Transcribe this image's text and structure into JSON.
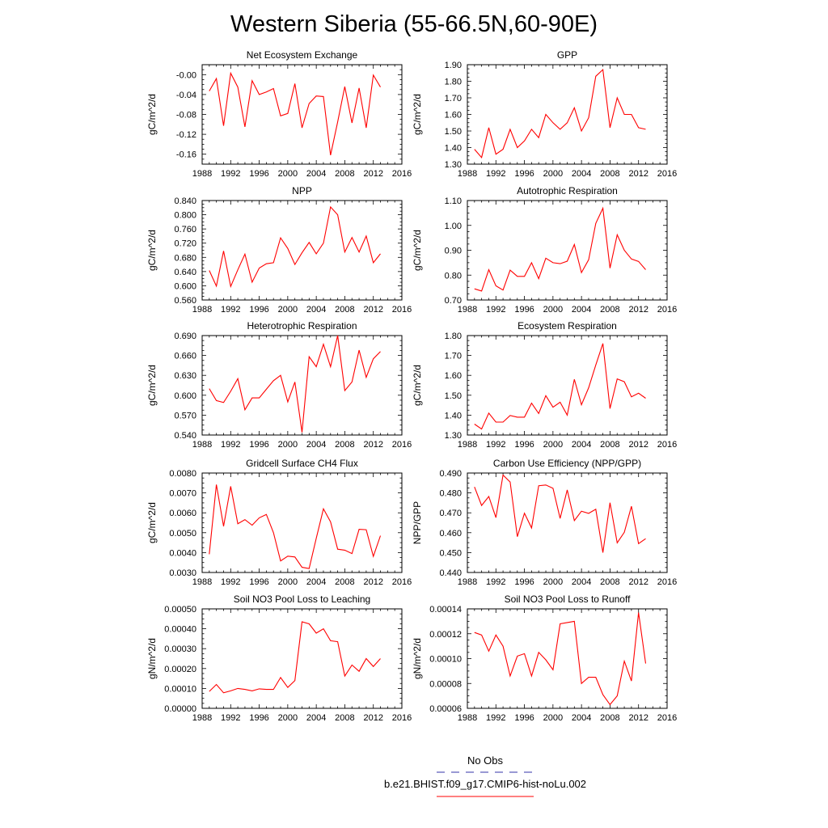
{
  "figure": {
    "title": "Western Siberia (55-66.5N,60-90E)"
  },
  "legend": {
    "obs_label": "No Obs",
    "obs_color": "#3333aa",
    "model_label": "b.e21.BHIST.f09_g17.CMIP6-hist-noLu.002",
    "model_color": "#ff0000"
  },
  "chart_data": [
    {
      "type": "line",
      "title": "Net Ecosystem Exchange",
      "ylabel": "gC/m^2/d",
      "xlim": [
        1988,
        2016
      ],
      "xticks": [
        "1988",
        "1992",
        "1996",
        "2000",
        "2004",
        "2008",
        "2012",
        "2016"
      ],
      "ylim": [
        -0.18,
        0.02
      ],
      "yticks": [
        "-0.00",
        "-0.04",
        "-0.08",
        "-0.12",
        "-0.16"
      ],
      "ytick_values": [
        0.0,
        -0.04,
        -0.08,
        -0.12,
        -0.16
      ],
      "series": [
        {
          "x": [
            1989,
            1990,
            1991,
            1992,
            1993,
            1994,
            1995,
            1996,
            1997,
            1998,
            1999,
            2000,
            2001,
            2002,
            2003,
            2004,
            2005,
            2006,
            2007,
            2008,
            2009,
            2010,
            2011,
            2012,
            2013
          ],
          "y": [
            -0.033,
            -0.008,
            -0.103,
            0.003,
            -0.025,
            -0.105,
            -0.012,
            -0.04,
            -0.035,
            -0.028,
            -0.083,
            -0.078,
            -0.018,
            -0.107,
            -0.058,
            -0.043,
            -0.044,
            -0.162,
            -0.095,
            -0.024,
            -0.097,
            -0.027,
            -0.107,
            -0.001,
            -0.025
          ]
        }
      ]
    },
    {
      "type": "line",
      "title": "GPP",
      "ylabel": "gC/m^2/d",
      "xlim": [
        1988,
        2016
      ],
      "xticks": [
        "1988",
        "1992",
        "1996",
        "2000",
        "2004",
        "2008",
        "2012",
        "2016"
      ],
      "ylim": [
        1.3,
        1.9
      ],
      "yticks": [
        "1.30",
        "1.40",
        "1.50",
        "1.60",
        "1.70",
        "1.80",
        "1.90"
      ],
      "ytick_values": [
        1.3,
        1.4,
        1.5,
        1.6,
        1.7,
        1.8,
        1.9
      ],
      "series": [
        {
          "x": [
            1989,
            1990,
            1991,
            1992,
            1993,
            1994,
            1995,
            1996,
            1997,
            1998,
            1999,
            2000,
            2001,
            2002,
            2003,
            2004,
            2005,
            2006,
            2007,
            2008,
            2009,
            2010,
            2011,
            2012,
            2013
          ],
          "y": [
            1.39,
            1.34,
            1.52,
            1.36,
            1.39,
            1.51,
            1.4,
            1.44,
            1.51,
            1.46,
            1.6,
            1.55,
            1.51,
            1.55,
            1.64,
            1.5,
            1.58,
            1.83,
            1.87,
            1.52,
            1.7,
            1.6,
            1.6,
            1.52,
            1.51
          ]
        }
      ]
    },
    {
      "type": "line",
      "title": "NPP",
      "ylabel": "gC/m^2/d",
      "xlim": [
        1988,
        2016
      ],
      "xticks": [
        "1988",
        "1992",
        "1996",
        "2000",
        "2004",
        "2008",
        "2012",
        "2016"
      ],
      "ylim": [
        0.56,
        0.84
      ],
      "yticks": [
        "0.560",
        "0.600",
        "0.640",
        "0.680",
        "0.720",
        "0.760",
        "0.800",
        "0.840"
      ],
      "ytick_values": [
        0.56,
        0.6,
        0.64,
        0.68,
        0.72,
        0.76,
        0.8,
        0.84
      ],
      "series": [
        {
          "x": [
            1989,
            1990,
            1991,
            1992,
            1993,
            1994,
            1995,
            1996,
            1997,
            1998,
            1999,
            2000,
            2001,
            2002,
            2003,
            2004,
            2005,
            2006,
            2007,
            2008,
            2009,
            2010,
            2011,
            2012,
            2013
          ],
          "y": [
            0.643,
            0.599,
            0.698,
            0.598,
            0.645,
            0.689,
            0.61,
            0.65,
            0.662,
            0.665,
            0.735,
            0.705,
            0.66,
            0.693,
            0.722,
            0.69,
            0.72,
            0.822,
            0.8,
            0.695,
            0.736,
            0.695,
            0.74,
            0.665,
            0.69
          ]
        }
      ]
    },
    {
      "type": "line",
      "title": "Autotrophic Respiration",
      "ylabel": "gC/m^2/d",
      "xlim": [
        1988,
        2016
      ],
      "xticks": [
        "1988",
        "1992",
        "1996",
        "2000",
        "2004",
        "2008",
        "2012",
        "2016"
      ],
      "ylim": [
        0.7,
        1.1
      ],
      "yticks": [
        "0.70",
        "0.80",
        "0.90",
        "1.00",
        "1.10"
      ],
      "ytick_values": [
        0.7,
        0.8,
        0.9,
        1.0,
        1.1
      ],
      "series": [
        {
          "x": [
            1989,
            1990,
            1991,
            1992,
            1993,
            1994,
            1995,
            1996,
            1997,
            1998,
            1999,
            2000,
            2001,
            2002,
            2003,
            2004,
            2005,
            2006,
            2007,
            2008,
            2009,
            2010,
            2011,
            2012,
            2013
          ],
          "y": [
            0.745,
            0.736,
            0.822,
            0.757,
            0.74,
            0.82,
            0.795,
            0.795,
            0.85,
            0.786,
            0.868,
            0.85,
            0.846,
            0.856,
            0.923,
            0.81,
            0.862,
            1.008,
            1.069,
            0.828,
            0.962,
            0.9,
            0.865,
            0.855,
            0.822
          ]
        }
      ]
    },
    {
      "type": "line",
      "title": "Heterotrophic Respiration",
      "ylabel": "gC/m^2/d",
      "xlim": [
        1988,
        2016
      ],
      "xticks": [
        "1988",
        "1992",
        "1996",
        "2000",
        "2004",
        "2008",
        "2012",
        "2016"
      ],
      "ylim": [
        0.54,
        0.69
      ],
      "yticks": [
        "0.540",
        "0.570",
        "0.600",
        "0.630",
        "0.660",
        "0.690"
      ],
      "ytick_values": [
        0.54,
        0.57,
        0.6,
        0.63,
        0.66,
        0.69
      ],
      "series": [
        {
          "x": [
            1989,
            1990,
            1991,
            1992,
            1993,
            1994,
            1995,
            1996,
            1997,
            1998,
            1999,
            2000,
            2001,
            2002,
            2003,
            2004,
            2005,
            2006,
            2007,
            2008,
            2009,
            2010,
            2011,
            2012,
            2013
          ],
          "y": [
            0.61,
            0.592,
            0.589,
            0.606,
            0.625,
            0.578,
            0.596,
            0.596,
            0.609,
            0.622,
            0.63,
            0.59,
            0.62,
            0.544,
            0.658,
            0.643,
            0.677,
            0.643,
            0.69,
            0.607,
            0.62,
            0.668,
            0.627,
            0.655,
            0.666
          ]
        }
      ]
    },
    {
      "type": "line",
      "title": "Ecosystem Respiration",
      "ylabel": "gC/m^2/d",
      "xlim": [
        1988,
        2016
      ],
      "xticks": [
        "1988",
        "1992",
        "1996",
        "2000",
        "2004",
        "2008",
        "2012",
        "2016"
      ],
      "ylim": [
        1.3,
        1.8
      ],
      "yticks": [
        "1.30",
        "1.40",
        "1.50",
        "1.60",
        "1.70",
        "1.80"
      ],
      "ytick_values": [
        1.3,
        1.4,
        1.5,
        1.6,
        1.7,
        1.8
      ],
      "series": [
        {
          "x": [
            1989,
            1990,
            1991,
            1992,
            1993,
            1994,
            1995,
            1996,
            1997,
            1998,
            1999,
            2000,
            2001,
            2002,
            2003,
            2004,
            2005,
            2006,
            2007,
            2008,
            2009,
            2010,
            2011,
            2012,
            2013
          ],
          "y": [
            1.355,
            1.33,
            1.41,
            1.365,
            1.365,
            1.398,
            1.39,
            1.39,
            1.46,
            1.408,
            1.498,
            1.44,
            1.465,
            1.4,
            1.58,
            1.452,
            1.538,
            1.652,
            1.76,
            1.433,
            1.582,
            1.568,
            1.492,
            1.51,
            1.485
          ]
        }
      ]
    },
    {
      "type": "line",
      "title": "Gridcell Surface CH4 Flux",
      "ylabel": "gC/m^2/d",
      "xlim": [
        1988,
        2016
      ],
      "xticks": [
        "1988",
        "1992",
        "1996",
        "2000",
        "2004",
        "2008",
        "2012",
        "2016"
      ],
      "ylim": [
        0.003,
        0.008
      ],
      "yticks": [
        "0.0030",
        "0.0040",
        "0.0050",
        "0.0060",
        "0.0070",
        "0.0080"
      ],
      "ytick_values": [
        0.003,
        0.004,
        0.005,
        0.006,
        0.007,
        0.008
      ],
      "series": [
        {
          "x": [
            1989,
            1990,
            1991,
            1992,
            1993,
            1994,
            1995,
            1996,
            1997,
            1998,
            1999,
            2000,
            2001,
            2002,
            2003,
            2004,
            2005,
            2006,
            2007,
            2008,
            2009,
            2010,
            2011,
            2012,
            2013
          ],
          "y": [
            0.00392,
            0.00742,
            0.00532,
            0.00733,
            0.00545,
            0.00566,
            0.00538,
            0.00575,
            0.00592,
            0.005,
            0.00358,
            0.00382,
            0.00378,
            0.00326,
            0.0032,
            0.00472,
            0.0062,
            0.00555,
            0.00417,
            0.00412,
            0.00395,
            0.00517,
            0.00515,
            0.00381,
            0.00485
          ]
        }
      ]
    },
    {
      "type": "line",
      "title": "Carbon Use Efficiency (NPP/GPP)",
      "ylabel": "NPP/GPP",
      "xlim": [
        1988,
        2016
      ],
      "xticks": [
        "1988",
        "1992",
        "1996",
        "2000",
        "2004",
        "2008",
        "2012",
        "2016"
      ],
      "ylim": [
        0.44,
        0.49
      ],
      "yticks": [
        "0.440",
        "0.450",
        "0.460",
        "0.470",
        "0.480",
        "0.490"
      ],
      "ytick_values": [
        0.44,
        0.45,
        0.46,
        0.47,
        0.48,
        0.49
      ],
      "series": [
        {
          "x": [
            1989,
            1990,
            1991,
            1992,
            1993,
            1994,
            1995,
            1996,
            1997,
            1998,
            1999,
            2000,
            2001,
            2002,
            2003,
            2004,
            2005,
            2006,
            2007,
            2008,
            2009,
            2010,
            2011,
            2012,
            2013
          ],
          "y": [
            0.483,
            0.4737,
            0.4782,
            0.4676,
            0.489,
            0.4855,
            0.458,
            0.4698,
            0.4624,
            0.4836,
            0.484,
            0.4823,
            0.4672,
            0.4815,
            0.4661,
            0.4708,
            0.4697,
            0.4718,
            0.45,
            0.4751,
            0.4549,
            0.4602,
            0.4733,
            0.4545,
            0.457
          ]
        }
      ]
    },
    {
      "type": "line",
      "title": "Soil NO3 Pool Loss to Leaching",
      "ylabel": "gN/m^2/d",
      "xlim": [
        1988,
        2016
      ],
      "xticks": [
        "1988",
        "1992",
        "1996",
        "2000",
        "2004",
        "2008",
        "2012",
        "2016"
      ],
      "ylim": [
        0.0,
        0.0005
      ],
      "yticks": [
        "0.00000",
        "0.00010",
        "0.00020",
        "0.00030",
        "0.00040",
        "0.00050"
      ],
      "ytick_values": [
        0.0,
        0.0001,
        0.0002,
        0.0003,
        0.0004,
        0.0005
      ],
      "series": [
        {
          "x": [
            1989,
            1990,
            1991,
            1992,
            1993,
            1994,
            1995,
            1996,
            1997,
            1998,
            1999,
            2000,
            2001,
            2002,
            2003,
            2004,
            2005,
            2006,
            2007,
            2008,
            2009,
            2010,
            2011,
            2012,
            2013
          ],
          "y": [
            8.5e-05,
            0.00012,
            7.8e-05,
            8.8e-05,
            0.0001,
            9.5e-05,
            8.8e-05,
            9.8e-05,
            9.5e-05,
            9.5e-05,
            0.000155,
            0.000105,
            0.00014,
            0.000435,
            0.000425,
            0.000378,
            0.0004,
            0.00034,
            0.000335,
            0.000162,
            0.000218,
            0.000186,
            0.00025,
            0.00021,
            0.00025
          ]
        }
      ]
    },
    {
      "type": "line",
      "title": "Soil NO3 Pool Loss to Runoff",
      "ylabel": "gN/m^2/d",
      "xlim": [
        1988,
        2016
      ],
      "xticks": [
        "1988",
        "1992",
        "1996",
        "2000",
        "2004",
        "2008",
        "2012",
        "2016"
      ],
      "ylim": [
        6e-05,
        0.00014
      ],
      "yticks": [
        "0.00006",
        "0.00008",
        "0.00010",
        "0.00012",
        "0.00014"
      ],
      "ytick_values": [
        6e-05,
        8e-05,
        0.0001,
        0.00012,
        0.00014
      ],
      "series": [
        {
          "x": [
            1989,
            1990,
            1991,
            1992,
            1993,
            1994,
            1995,
            1996,
            1997,
            1998,
            1999,
            2000,
            2001,
            2002,
            2003,
            2004,
            2005,
            2006,
            2007,
            2008,
            2009,
            2010,
            2011,
            2012,
            2013
          ],
          "y": [
            0.000121,
            0.000119,
            0.000106,
            0.000119,
            0.00011,
            8.6e-05,
            0.000102,
            0.000104,
            8.6e-05,
            0.000105,
            9.9e-05,
            9.1e-05,
            0.000128,
            0.000129,
            0.00013,
            8e-05,
            8.5e-05,
            8.5e-05,
            7.1e-05,
            6.3e-05,
            7e-05,
            9.8e-05,
            8.2e-05,
            0.000137,
            9.6e-05
          ]
        }
      ]
    }
  ]
}
